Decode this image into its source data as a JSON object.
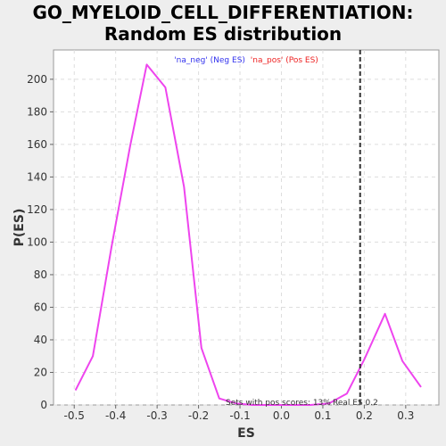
{
  "chart_data": {
    "type": "line",
    "title_line1": "GO_MYELOID_CELL_DIFFERENTIATION:",
    "title_line2": "Random ES distribution",
    "xlabel": "ES",
    "ylabel": "P(ES)",
    "xlim": [
      -0.55,
      0.38
    ],
    "ylim": [
      0,
      218
    ],
    "xticks": [
      -0.5,
      -0.4,
      -0.3,
      -0.2,
      -0.1,
      0.0,
      0.1,
      0.2,
      0.3
    ],
    "xtick_labels": [
      "-0.5",
      "-0.4",
      "-0.3",
      "-0.2",
      "-0.1",
      "0.0",
      "0.1",
      "0.2",
      "0.3"
    ],
    "yticks": [
      0,
      20,
      40,
      60,
      80,
      100,
      120,
      140,
      160,
      180,
      200
    ],
    "ytick_labels": [
      "0",
      "20",
      "40",
      "60",
      "80",
      "100",
      "120",
      "140",
      "160",
      "180",
      "200"
    ],
    "grid": true,
    "series": [
      {
        "color": "#ee44ee",
        "x": [
          -0.497,
          -0.455,
          -0.41,
          -0.365,
          -0.325,
          -0.28,
          -0.235,
          -0.193,
          -0.15,
          -0.11,
          -0.07,
          0.0,
          0.07,
          0.115,
          0.158,
          0.2,
          0.25,
          0.292,
          0.337
        ],
        "y": [
          9,
          30,
          97,
          159,
          209,
          195,
          134,
          35,
          4,
          1,
          0,
          0,
          0,
          1,
          7,
          28,
          56,
          27,
          11
        ]
      }
    ],
    "legend": {
      "placement": "top-center",
      "neg_label": "'na_neg' (Neg ES)",
      "pos_label": "'na_pos' (Pos ES)",
      "neg_color": "#3333ee",
      "pos_color": "#ee2222"
    },
    "real_es": 0.19,
    "real_es_line_color": "#333333",
    "annotation_sets": "Sets with pos scores: 13%",
    "annotation_real": "Real ES 0.2"
  }
}
